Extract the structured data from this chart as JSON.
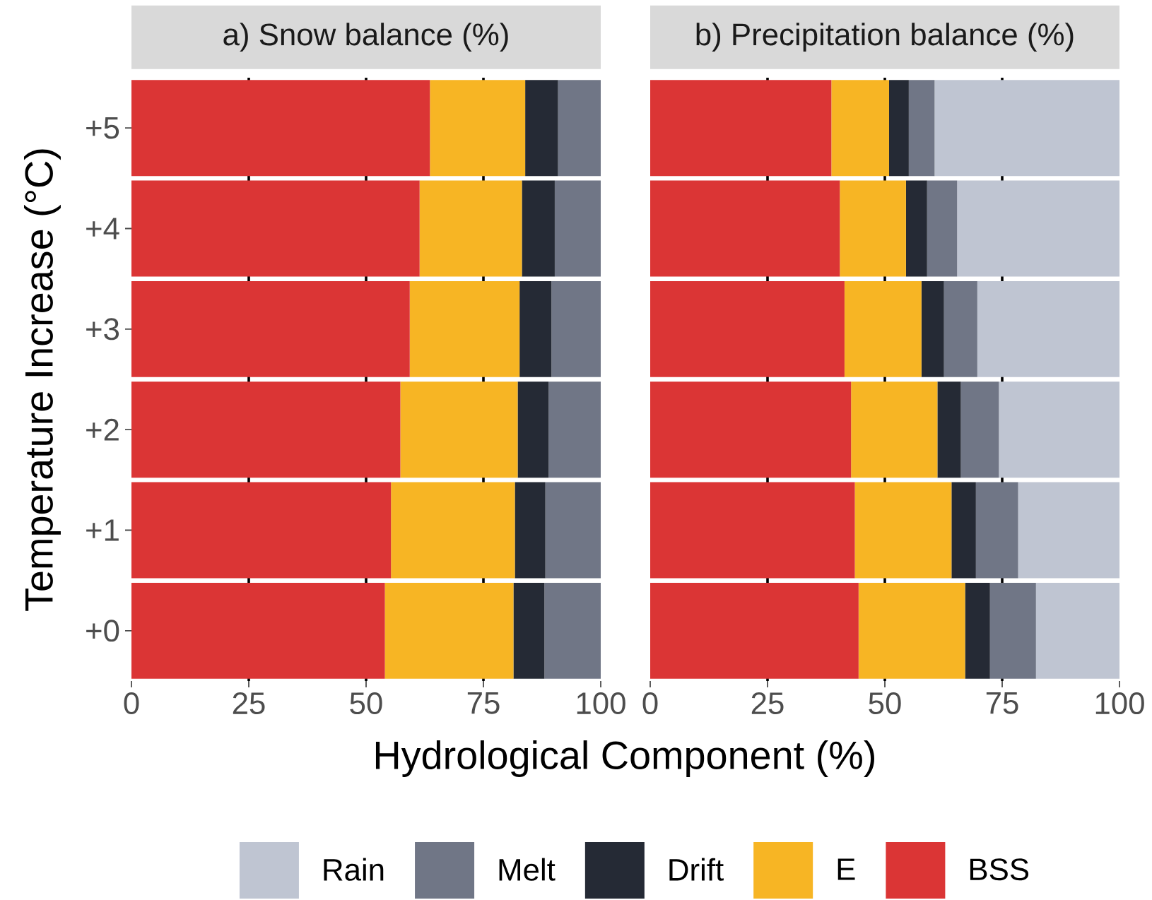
{
  "chart_data": [
    {
      "type": "bar",
      "orientation": "horizontal",
      "stacked": true,
      "title": "a) Snow balance (%)",
      "xlabel": "Hydrological Component (%)",
      "ylabel": "Temperature Increase (°C)",
      "categories": [
        "+5",
        "+4",
        "+3",
        "+2",
        "+1",
        "+0"
      ],
      "xlim": [
        0,
        100
      ],
      "xticks": [
        0,
        25,
        50,
        75,
        100
      ],
      "ref_lines": [
        {
          "axis": "x",
          "value": 25,
          "color": "#000000"
        },
        {
          "axis": "x",
          "value": 50,
          "color": "#000000"
        },
        {
          "axis": "x",
          "value": 75,
          "color": "#000000"
        }
      ],
      "series": [
        {
          "color": "#db3535",
          "values": [
            63.6,
            61.4,
            59.3,
            57.3,
            55.3,
            54.0
          ]
        },
        {
          "color": "#f7b524",
          "values": [
            20.3,
            21.8,
            23.4,
            25.0,
            26.4,
            27.4
          ]
        },
        {
          "color": "#252a35",
          "values": [
            7.0,
            7.0,
            6.8,
            6.6,
            6.5,
            6.6
          ]
        },
        {
          "color": "#707686",
          "values": [
            9.1,
            9.8,
            10.5,
            11.1,
            11.8,
            12.0
          ]
        }
      ]
    },
    {
      "type": "bar",
      "orientation": "horizontal",
      "stacked": true,
      "title": "b) Precipitation balance (%)",
      "tick_labels": "x",
      "legend": "bottom",
      "categories": [
        "+5",
        "+4",
        "+3",
        "+2",
        "+1",
        "+0"
      ],
      "xlim": [
        0,
        100
      ],
      "xticks": [
        0,
        25,
        50,
        75,
        100
      ],
      "ref_lines": [
        {
          "axis": "x",
          "value": 25,
          "color": "#000000"
        },
        {
          "axis": "x",
          "value": 50,
          "color": "#000000"
        },
        {
          "axis": "x",
          "value": 75,
          "color": "#000000"
        }
      ],
      "series": [
        {
          "name": "BSS",
          "color": "#db3535",
          "values": [
            38.6,
            40.4,
            41.4,
            42.8,
            43.6,
            44.4
          ]
        },
        {
          "name": "E",
          "color": "#f7b524",
          "values": [
            12.3,
            14.1,
            16.4,
            18.4,
            20.6,
            22.7
          ]
        },
        {
          "name": "Drift",
          "color": "#252a35",
          "values": [
            4.2,
            4.5,
            4.8,
            5.0,
            5.2,
            5.3
          ]
        },
        {
          "name": "Melt",
          "color": "#707686",
          "values": [
            5.5,
            6.4,
            7.1,
            8.1,
            9.0,
            9.8
          ]
        },
        {
          "name": "Rain",
          "color": "#bfc5d2",
          "values": [
            39.4,
            34.6,
            30.3,
            25.7,
            21.6,
            17.8
          ]
        }
      ]
    }
  ]
}
